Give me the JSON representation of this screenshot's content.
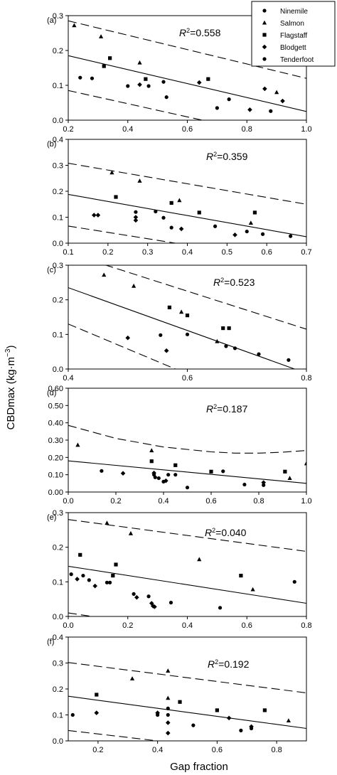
{
  "figure": {
    "ylabel": "CBDmax (kg·m−3)",
    "xlabel": "Gap fraction"
  },
  "legend": {
    "entries": [
      {
        "name": "Ninemile",
        "marker": "circle"
      },
      {
        "name": "Salmon",
        "marker": "triangle"
      },
      {
        "name": "Flagstaff",
        "marker": "square"
      },
      {
        "name": "Blodgett",
        "marker": "diamond"
      },
      {
        "name": "Tenderfoot",
        "marker": "circle"
      }
    ]
  },
  "chart_data": [
    {
      "type": "scatter",
      "panel": "(a)",
      "r2": "R2=0.558",
      "xlim": [
        0.2,
        1.0
      ],
      "ylim": [
        0,
        0.3
      ],
      "xticks": [
        "0.2",
        "0.4",
        "0.6",
        "0.8",
        "1.0"
      ],
      "yticks": [
        "0.0",
        "0.1",
        "0.2",
        "0.3"
      ],
      "fit": [
        [
          0.2,
          0.185
        ],
        [
          1.0,
          0.025
        ]
      ],
      "upper": [
        [
          0.2,
          0.285
        ],
        [
          1.0,
          0.12
        ]
      ],
      "lower": [
        [
          0.2,
          0.085
        ],
        [
          0.65,
          0.0
        ]
      ],
      "points": [
        [
          0.22,
          0.272,
          "triangle"
        ],
        [
          0.31,
          0.24,
          "triangle"
        ],
        [
          0.44,
          0.165,
          "triangle"
        ],
        [
          0.9,
          0.08,
          "triangle"
        ],
        [
          0.34,
          0.178,
          "square"
        ],
        [
          0.32,
          0.155,
          "square"
        ],
        [
          0.46,
          0.118,
          "square"
        ],
        [
          0.67,
          0.118,
          "square"
        ],
        [
          0.24,
          0.122,
          "circle"
        ],
        [
          0.28,
          0.12,
          "circle"
        ],
        [
          0.4,
          0.098,
          "circle"
        ],
        [
          0.47,
          0.098,
          "circle"
        ],
        [
          0.52,
          0.11,
          "circle"
        ],
        [
          0.53,
          0.066,
          "circle"
        ],
        [
          0.74,
          0.06,
          "circle"
        ],
        [
          0.7,
          0.035,
          "circle"
        ],
        [
          0.88,
          0.026,
          "circle"
        ],
        [
          0.44,
          0.102,
          "diamond"
        ],
        [
          0.64,
          0.108,
          "diamond"
        ],
        [
          0.86,
          0.09,
          "diamond"
        ],
        [
          0.81,
          0.03,
          "diamond"
        ],
        [
          0.92,
          0.055,
          "diamond"
        ]
      ]
    },
    {
      "type": "scatter",
      "panel": "(b)",
      "r2": "R2=0.359",
      "xlim": [
        0.1,
        0.7
      ],
      "ylim": [
        0,
        0.4
      ],
      "xticks": [
        "0.1",
        "0.2",
        "0.3",
        "0.4",
        "0.5",
        "0.6",
        "0.7"
      ],
      "yticks": [
        "0.0",
        "0.1",
        "0.2",
        "0.3",
        "0.4"
      ],
      "fit": [
        [
          0.1,
          0.188
        ],
        [
          0.7,
          0.025
        ]
      ],
      "upper": [
        [
          0.1,
          0.308
        ],
        [
          0.7,
          0.15
        ]
      ],
      "lower": [
        [
          0.1,
          0.066
        ],
        [
          0.37,
          0.0
        ]
      ],
      "points": [
        [
          0.21,
          0.272,
          "triangle"
        ],
        [
          0.28,
          0.24,
          "triangle"
        ],
        [
          0.38,
          0.165,
          "triangle"
        ],
        [
          0.56,
          0.078,
          "triangle"
        ],
        [
          0.22,
          0.178,
          "square"
        ],
        [
          0.36,
          0.155,
          "square"
        ],
        [
          0.43,
          0.118,
          "square"
        ],
        [
          0.57,
          0.118,
          "square"
        ],
        [
          0.27,
          0.12,
          "circle"
        ],
        [
          0.32,
          0.122,
          "circle"
        ],
        [
          0.34,
          0.098,
          "circle"
        ],
        [
          0.36,
          0.06,
          "circle"
        ],
        [
          0.47,
          0.065,
          "circle"
        ],
        [
          0.55,
          0.045,
          "circle"
        ],
        [
          0.59,
          0.035,
          "circle"
        ],
        [
          0.66,
          0.027,
          "circle"
        ],
        [
          0.165,
          0.108,
          "diamond"
        ],
        [
          0.175,
          0.108,
          "diamond"
        ],
        [
          0.27,
          0.1,
          "diamond"
        ],
        [
          0.27,
          0.088,
          "diamond"
        ],
        [
          0.385,
          0.055,
          "diamond"
        ],
        [
          0.52,
          0.032,
          "diamond"
        ]
      ]
    },
    {
      "type": "scatter",
      "panel": "(c)",
      "r2": "R2=0.523",
      "xlim": [
        0.4,
        0.8
      ],
      "ylim": [
        0,
        0.3
      ],
      "xticks": [
        "0.4",
        "0.6",
        "0.8"
      ],
      "yticks": [
        "0.0",
        "0.1",
        "0.2",
        "0.3"
      ],
      "fit": [
        [
          0.4,
          0.235
        ],
        [
          0.78,
          0.0
        ]
      ],
      "upper": [
        [
          0.4,
          0.335
        ],
        [
          0.8,
          0.115
        ]
      ],
      "lower": [
        [
          0.4,
          0.13
        ],
        [
          0.58,
          0.0
        ]
      ],
      "points": [
        [
          0.46,
          0.272,
          "triangle"
        ],
        [
          0.51,
          0.24,
          "triangle"
        ],
        [
          0.59,
          0.165,
          "triangle"
        ],
        [
          0.65,
          0.08,
          "triangle"
        ],
        [
          0.57,
          0.178,
          "square"
        ],
        [
          0.6,
          0.155,
          "square"
        ],
        [
          0.66,
          0.118,
          "square"
        ],
        [
          0.67,
          0.118,
          "square"
        ],
        [
          0.555,
          0.098,
          "circle"
        ],
        [
          0.6,
          0.1,
          "circle"
        ],
        [
          0.665,
          0.066,
          "circle"
        ],
        [
          0.68,
          0.06,
          "circle"
        ],
        [
          0.72,
          0.043,
          "circle"
        ],
        [
          0.77,
          0.026,
          "circle"
        ],
        [
          0.5,
          0.09,
          "diamond"
        ],
        [
          0.565,
          0.053,
          "diamond"
        ]
      ]
    },
    {
      "type": "scatter",
      "panel": "(d)",
      "r2": "R2=0.187",
      "xlim": [
        0.0,
        1.0
      ],
      "ylim": [
        0,
        0.6
      ],
      "xticks": [
        "0.0",
        "0.2",
        "0.4",
        "0.6",
        "0.8",
        "1.0"
      ],
      "yticks": [
        "0.00",
        "0.10",
        "0.20",
        "0.30",
        "0.40",
        "0.50",
        "0.60"
      ],
      "fit": [
        [
          0.0,
          0.18
        ],
        [
          1.0,
          0.05
        ]
      ],
      "upper": [
        [
          0.0,
          0.385
        ],
        [
          0.2,
          0.31
        ],
        [
          0.4,
          0.26
        ],
        [
          0.6,
          0.232
        ],
        [
          0.7,
          0.225
        ],
        [
          0.8,
          0.225
        ],
        [
          0.9,
          0.23
        ],
        [
          1.0,
          0.24
        ]
      ],
      "lower": [
        [
          0.0,
          -0.02
        ],
        [
          0.3,
          0.0
        ],
        [
          1.0,
          0.0
        ]
      ],
      "points": [
        [
          0.04,
          0.272,
          "triangle"
        ],
        [
          0.35,
          0.24,
          "triangle"
        ],
        [
          0.93,
          0.08,
          "triangle"
        ],
        [
          1.0,
          0.165,
          "triangle"
        ],
        [
          0.35,
          0.178,
          "square"
        ],
        [
          0.45,
          0.155,
          "square"
        ],
        [
          0.6,
          0.118,
          "square"
        ],
        [
          0.91,
          0.118,
          "square"
        ],
        [
          0.14,
          0.122,
          "circle"
        ],
        [
          0.36,
          0.1,
          "circle"
        ],
        [
          0.365,
          0.085,
          "circle"
        ],
        [
          0.38,
          0.08,
          "circle"
        ],
        [
          0.4,
          0.06,
          "circle"
        ],
        [
          0.42,
          0.1,
          "circle"
        ],
        [
          0.45,
          0.1,
          "circle"
        ],
        [
          0.5,
          0.026,
          "circle"
        ],
        [
          0.65,
          0.12,
          "circle"
        ],
        [
          0.74,
          0.043,
          "circle"
        ],
        [
          0.82,
          0.04,
          "circle"
        ],
        [
          0.23,
          0.108,
          "diamond"
        ],
        [
          0.36,
          0.11,
          "diamond"
        ],
        [
          0.41,
          0.065,
          "diamond"
        ],
        [
          0.82,
          0.055,
          "diamond"
        ]
      ]
    },
    {
      "type": "scatter",
      "panel": "(e)",
      "r2": "R2=0.040",
      "xlim": [
        0.0,
        0.8
      ],
      "ylim": [
        0,
        0.3
      ],
      "xticks": [
        "0.0",
        "0.2",
        "0.4",
        "0.6",
        "0.8"
      ],
      "yticks": [
        "0.0",
        "0.1",
        "0.2",
        "0.3"
      ],
      "fit": [
        [
          0.0,
          0.145
        ],
        [
          0.8,
          0.038
        ]
      ],
      "upper": [
        [
          0.0,
          0.28
        ],
        [
          0.8,
          0.188
        ]
      ],
      "lower": [
        [
          0.0,
          0.01
        ],
        [
          0.08,
          0.0
        ]
      ],
      "points": [
        [
          0.13,
          0.27,
          "triangle"
        ],
        [
          0.21,
          0.24,
          "triangle"
        ],
        [
          0.44,
          0.165,
          "triangle"
        ],
        [
          0.62,
          0.078,
          "triangle"
        ],
        [
          0.04,
          0.178,
          "square"
        ],
        [
          0.16,
          0.15,
          "square"
        ],
        [
          0.15,
          0.118,
          "square"
        ],
        [
          0.58,
          0.118,
          "square"
        ],
        [
          0.01,
          0.122,
          "circle"
        ],
        [
          0.05,
          0.118,
          "circle"
        ],
        [
          0.07,
          0.105,
          "circle"
        ],
        [
          0.13,
          0.098,
          "circle"
        ],
        [
          0.14,
          0.098,
          "circle"
        ],
        [
          0.22,
          0.065,
          "circle"
        ],
        [
          0.27,
          0.058,
          "circle"
        ],
        [
          0.345,
          0.04,
          "circle"
        ],
        [
          0.51,
          0.025,
          "circle"
        ],
        [
          0.76,
          0.1,
          "circle"
        ],
        [
          0.03,
          0.108,
          "diamond"
        ],
        [
          0.09,
          0.088,
          "diamond"
        ],
        [
          0.23,
          0.055,
          "diamond"
        ],
        [
          0.28,
          0.038,
          "diamond"
        ],
        [
          0.285,
          0.03,
          "diamond"
        ],
        [
          0.29,
          0.028,
          "diamond"
        ]
      ]
    },
    {
      "type": "scatter",
      "panel": "(f)",
      "r2": "R2=0.192",
      "xlim": [
        0.1,
        0.9
      ],
      "ylim": [
        0,
        0.4
      ],
      "xticks": [
        "0.2",
        "0.4",
        "0.6",
        "0.8"
      ],
      "yticks": [
        "0.0",
        "0.1",
        "0.2",
        "0.3",
        "0.4"
      ],
      "fit": [
        [
          0.1,
          0.172
        ],
        [
          0.9,
          0.048
        ]
      ],
      "upper": [
        [
          0.1,
          0.302
        ],
        [
          0.9,
          0.185
        ]
      ],
      "lower": [
        [
          0.1,
          0.04
        ],
        [
          0.4,
          0.0
        ]
      ],
      "points": [
        [
          0.315,
          0.24,
          "triangle"
        ],
        [
          0.435,
          0.27,
          "triangle"
        ],
        [
          0.435,
          0.165,
          "triangle"
        ],
        [
          0.84,
          0.078,
          "triangle"
        ],
        [
          0.195,
          0.178,
          "square"
        ],
        [
          0.475,
          0.15,
          "square"
        ],
        [
          0.6,
          0.118,
          "square"
        ],
        [
          0.76,
          0.118,
          "square"
        ],
        [
          0.115,
          0.1,
          "circle"
        ],
        [
          0.4,
          0.1,
          "circle"
        ],
        [
          0.435,
          0.125,
          "circle"
        ],
        [
          0.435,
          0.1,
          "circle"
        ],
        [
          0.52,
          0.06,
          "circle"
        ],
        [
          0.68,
          0.04,
          "circle"
        ],
        [
          0.715,
          0.048,
          "circle"
        ],
        [
          0.195,
          0.108,
          "diamond"
        ],
        [
          0.4,
          0.108,
          "diamond"
        ],
        [
          0.435,
          0.07,
          "diamond"
        ],
        [
          0.435,
          0.03,
          "diamond"
        ],
        [
          0.64,
          0.088,
          "diamond"
        ],
        [
          0.715,
          0.055,
          "diamond"
        ]
      ]
    }
  ]
}
